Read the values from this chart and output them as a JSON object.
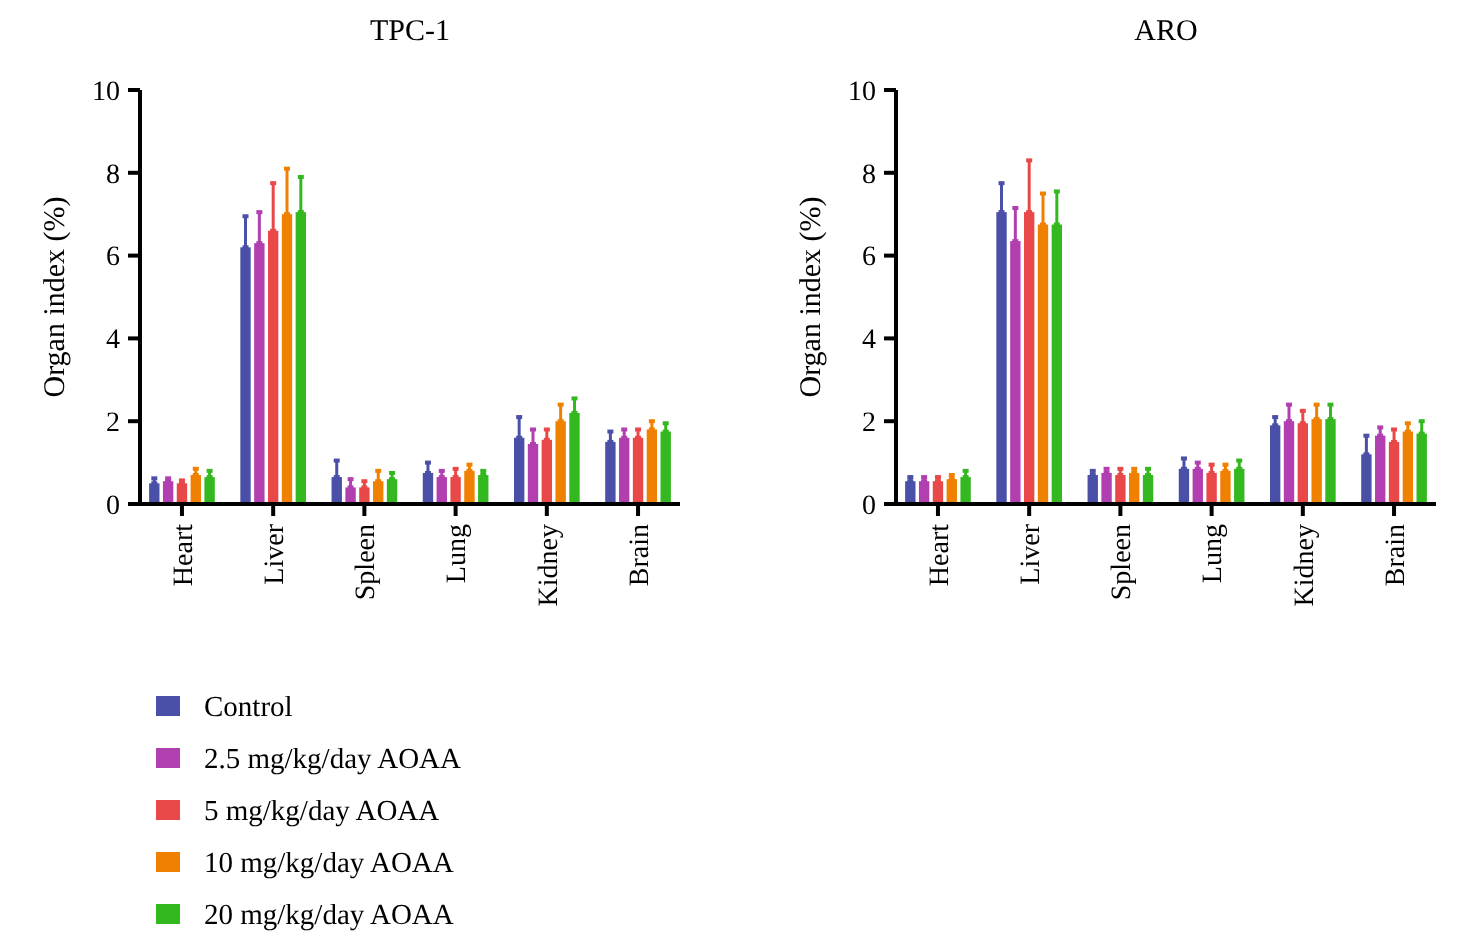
{
  "chart_data": [
    {
      "type": "bar",
      "title": "TPC-1",
      "ylabel": "Organ index (%)",
      "categories": [
        "Heart",
        "Liver",
        "Spleen",
        "Lung",
        "Kidney",
        "Brain"
      ],
      "ylim": [
        0,
        10
      ],
      "yticks": [
        0,
        2,
        4,
        6,
        8,
        10
      ],
      "legend": "bottom left",
      "series": [
        {
          "name": "Control",
          "color": "#4a4fa8",
          "values": [
            0.5,
            6.2,
            0.65,
            0.75,
            1.6,
            1.5
          ],
          "errors": [
            [
              0.5,
              0.62
            ],
            [
              6.2,
              6.95
            ],
            [
              0.65,
              1.05
            ],
            [
              0.75,
              1.0
            ],
            [
              1.6,
              2.1
            ],
            [
              1.5,
              1.75
            ]
          ]
        },
        {
          "name": "2.5 mg/kg/day AOAA",
          "color": "#b23fb0",
          "values": [
            0.55,
            6.3,
            0.4,
            0.65,
            1.45,
            1.6
          ],
          "errors": [
            [
              0.55,
              0.62
            ],
            [
              6.3,
              7.05
            ],
            [
              0.4,
              0.6
            ],
            [
              0.65,
              0.8
            ],
            [
              1.45,
              1.8
            ],
            [
              1.6,
              1.8
            ]
          ]
        },
        {
          "name": "5 mg/kg/day AOAA",
          "color": "#e84848",
          "values": [
            0.5,
            6.6,
            0.4,
            0.65,
            1.55,
            1.6
          ],
          "errors": [
            [
              0.5,
              0.57
            ],
            [
              6.6,
              7.75
            ],
            [
              0.4,
              0.55
            ],
            [
              0.65,
              0.85
            ],
            [
              1.55,
              1.8
            ],
            [
              1.6,
              1.8
            ]
          ]
        },
        {
          "name": "10 mg/kg/day AOAA",
          "color": "#f08000",
          "values": [
            0.7,
            7.0,
            0.55,
            0.8,
            2.0,
            1.8
          ],
          "errors": [
            [
              0.7,
              0.85
            ],
            [
              7.0,
              8.1
            ],
            [
              0.55,
              0.8
            ],
            [
              0.8,
              0.95
            ],
            [
              2.0,
              2.4
            ],
            [
              1.8,
              2.0
            ]
          ]
        },
        {
          "name": "20 mg/kg/day AOAA",
          "color": "#33b81f",
          "values": [
            0.65,
            7.05,
            0.6,
            0.7,
            2.2,
            1.75
          ],
          "errors": [
            [
              0.65,
              0.8
            ],
            [
              7.05,
              7.9
            ],
            [
              0.6,
              0.75
            ],
            [
              0.7,
              0.8
            ],
            [
              2.2,
              2.55
            ],
            [
              1.75,
              1.95
            ]
          ]
        }
      ]
    },
    {
      "type": "bar",
      "title": "ARO",
      "ylabel": "Organ index (%)",
      "categories": [
        "Heart",
        "Liver",
        "Spleen",
        "Lung",
        "Kidney",
        "Brain"
      ],
      "ylim": [
        0,
        10
      ],
      "yticks": [
        0,
        2,
        4,
        6,
        8,
        10
      ],
      "series": [
        {
          "color": "#4a4fa8",
          "values": [
            0.55,
            7.05,
            0.7,
            0.85,
            1.9,
            1.2
          ],
          "errors": [
            [
              0.55,
              0.65
            ],
            [
              7.05,
              7.75
            ],
            [
              0.7,
              0.8
            ],
            [
              0.85,
              1.1
            ],
            [
              1.9,
              2.1
            ],
            [
              1.2,
              1.65
            ]
          ]
        },
        {
          "color": "#b23fb0",
          "values": [
            0.55,
            6.35,
            0.75,
            0.85,
            2.0,
            1.65
          ],
          "errors": [
            [
              0.55,
              0.65
            ],
            [
              6.35,
              7.15
            ],
            [
              0.75,
              0.85
            ],
            [
              0.85,
              1.0
            ],
            [
              2.0,
              2.4
            ],
            [
              1.65,
              1.85
            ]
          ]
        },
        {
          "color": "#e84848",
          "values": [
            0.55,
            7.05,
            0.7,
            0.75,
            1.95,
            1.5
          ],
          "errors": [
            [
              0.55,
              0.65
            ],
            [
              7.05,
              8.3
            ],
            [
              0.7,
              0.85
            ],
            [
              0.75,
              0.95
            ],
            [
              1.95,
              2.25
            ],
            [
              1.5,
              1.8
            ]
          ]
        },
        {
          "color": "#f08000",
          "values": [
            0.6,
            6.75,
            0.75,
            0.8,
            2.05,
            1.75
          ],
          "errors": [
            [
              0.6,
              0.7
            ],
            [
              6.75,
              7.5
            ],
            [
              0.75,
              0.85
            ],
            [
              0.8,
              0.95
            ],
            [
              2.05,
              2.4
            ],
            [
              1.75,
              1.95
            ]
          ]
        },
        {
          "color": "#33b81f",
          "values": [
            0.65,
            6.75,
            0.7,
            0.85,
            2.05,
            1.7
          ],
          "errors": [
            [
              0.65,
              0.8
            ],
            [
              6.75,
              7.55
            ],
            [
              0.7,
              0.85
            ],
            [
              0.85,
              1.05
            ],
            [
              2.05,
              2.4
            ],
            [
              1.7,
              2.0
            ]
          ]
        }
      ]
    }
  ]
}
